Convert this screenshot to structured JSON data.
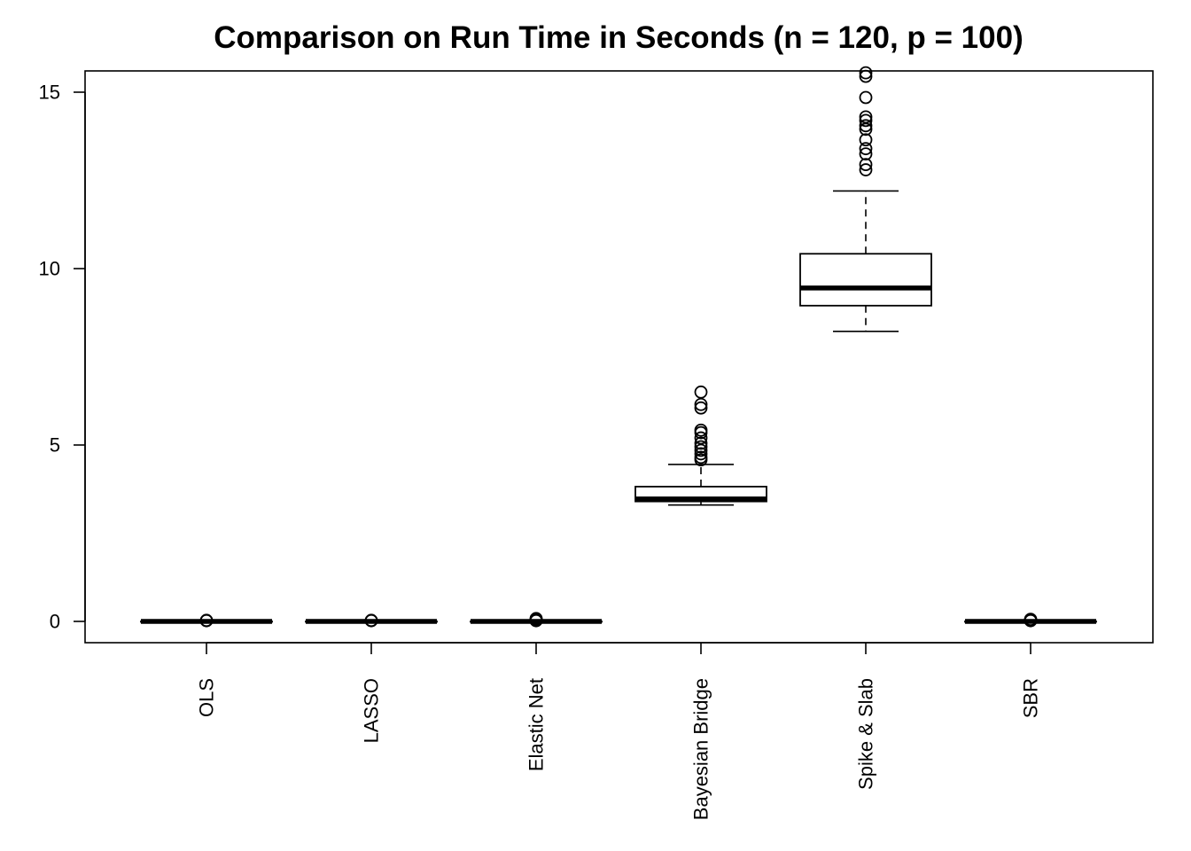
{
  "chart_data": {
    "type": "boxplot",
    "title": "Comparison on Run Time in Seconds (n = 120, p = 100)",
    "xlabel": "",
    "ylabel": "",
    "ylim": [
      -0.6,
      15.6
    ],
    "y_ticks": [
      0,
      5,
      10,
      15
    ],
    "y_tick_labels": [
      "0",
      "5",
      "10",
      "15"
    ],
    "grid": false,
    "legend": "none",
    "categories": [
      "OLS",
      "LASSO",
      "Elastic Net",
      "Bayesian Bridge",
      "Spike & Slab",
      "SBR"
    ],
    "boxes": [
      {
        "name": "OLS",
        "whisker_low": 0.0,
        "q1": 0.0,
        "median": 0.0,
        "q3": 0.0,
        "whisker_high": 0.0,
        "outliers": [
          0.02,
          0.03
        ]
      },
      {
        "name": "LASSO",
        "whisker_low": 0.0,
        "q1": 0.0,
        "median": 0.0,
        "q3": 0.0,
        "whisker_high": 0.0,
        "outliers": [
          0.02,
          0.03
        ]
      },
      {
        "name": "Elastic Net",
        "whisker_low": 0.0,
        "q1": 0.0,
        "median": 0.0,
        "q3": 0.0,
        "whisker_high": 0.0,
        "outliers": [
          0.02,
          0.05,
          0.08
        ]
      },
      {
        "name": "Bayesian Bridge",
        "whisker_low": 3.3,
        "q1": 3.4,
        "median": 3.47,
        "q3": 3.82,
        "whisker_high": 4.45,
        "outliers": [
          4.58,
          4.65,
          4.75,
          4.85,
          4.95,
          5.05,
          5.2,
          5.35,
          5.42,
          6.05,
          6.15,
          6.5
        ]
      },
      {
        "name": "Spike & Slab",
        "whisker_low": 8.22,
        "q1": 8.95,
        "median": 9.45,
        "q3": 10.42,
        "whisker_high": 12.2,
        "outliers": [
          12.8,
          12.95,
          13.25,
          13.4,
          13.65,
          13.95,
          14.05,
          14.2,
          14.3,
          14.85,
          15.45,
          15.55
        ]
      },
      {
        "name": "SBR",
        "whisker_low": 0.0,
        "q1": 0.0,
        "median": 0.0,
        "q3": 0.0,
        "whisker_high": 0.0,
        "outliers": [
          0.02,
          0.04,
          0.06
        ]
      }
    ]
  }
}
